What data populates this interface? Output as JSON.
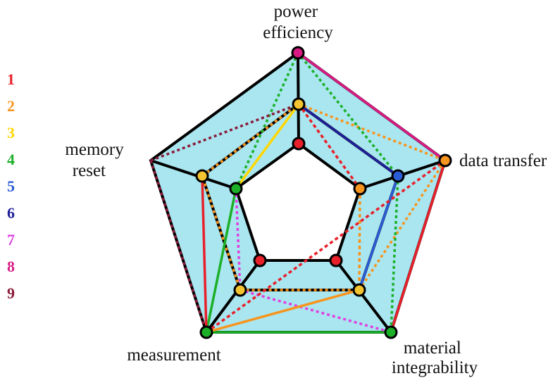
{
  "axes": [
    {
      "id": "power",
      "label_lines": [
        "power",
        "efficiency"
      ]
    },
    {
      "id": "data",
      "label_lines": [
        "data transfer"
      ]
    },
    {
      "id": "material",
      "label_lines": [
        "material",
        "integrability"
      ]
    },
    {
      "id": "measurement",
      "label_lines": [
        "measurement"
      ]
    },
    {
      "id": "memory",
      "label_lines": [
        "memory",
        "reset"
      ]
    }
  ],
  "legend": [
    {
      "label": "1",
      "color": "#e8202a"
    },
    {
      "label": "2",
      "color": "#f7941d"
    },
    {
      "label": "3",
      "color": "#ffd700"
    },
    {
      "label": "4",
      "color": "#1bb028"
    },
    {
      "label": "5",
      "color": "#2a5cd6"
    },
    {
      "label": "6",
      "color": "#1f1f99"
    },
    {
      "label": "7",
      "color": "#e040e0"
    },
    {
      "label": "8",
      "color": "#d81b83"
    },
    {
      "label": "9",
      "color": "#8b1a3a"
    }
  ],
  "polygon_colors": {
    "outer_fill": "#a9e6f0",
    "frame": "#000000",
    "inner_node": "#e8202a",
    "mid_node": "#f4c430"
  }
}
